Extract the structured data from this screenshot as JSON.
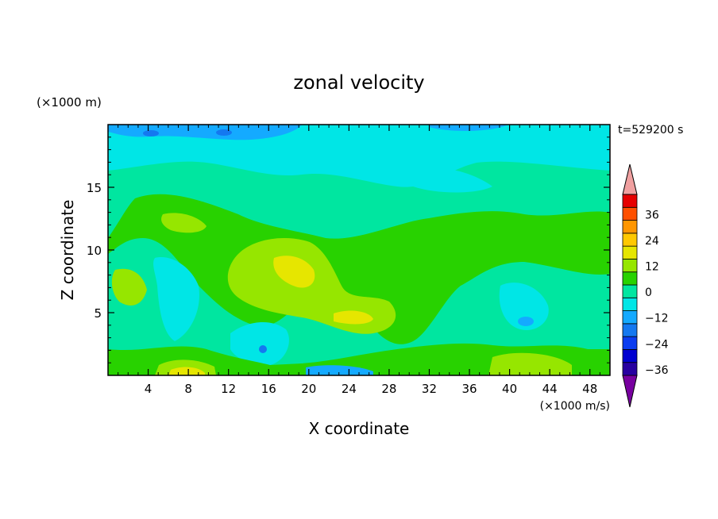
{
  "chart_data": {
    "type": "heatmap",
    "title": "zonal velocity",
    "xlabel": "X coordinate",
    "ylabel": "Z coordinate",
    "x_units": "(×1000 m/s)",
    "y_units": "(×1000 m)",
    "time_label": "t=529200 s",
    "x_ticks": [
      4,
      8,
      12,
      16,
      20,
      24,
      28,
      32,
      36,
      40,
      44,
      48
    ],
    "y_ticks": [
      5,
      10,
      15
    ],
    "xlim": [
      0,
      50
    ],
    "ylim": [
      0,
      20
    ],
    "colorbar": {
      "levels": [
        -42,
        -36,
        -30,
        -24,
        -18,
        -12,
        -6,
        0,
        6,
        12,
        18,
        24,
        30,
        36,
        42
      ],
      "labels": [
        36,
        24,
        12,
        0,
        -12,
        -24,
        -36
      ],
      "colors": [
        "#7800a0",
        "#2800a0",
        "#0000d0",
        "#0a3cf0",
        "#1478f0",
        "#14aaff",
        "#00e6e6",
        "#00e6a0",
        "#28d200",
        "#96e600",
        "#e6e600",
        "#ffc800",
        "#ff9600",
        "#ff5000",
        "#e60000",
        "#f0a0a0"
      ]
    },
    "regions": [
      {
        "x": 2,
        "y": 19.2,
        "value": -18
      },
      {
        "x": 11,
        "y": 19.3,
        "value": -18
      },
      {
        "x": 25,
        "y": 19.5,
        "value": -12
      },
      {
        "x": 6,
        "y": 17.5,
        "value": -6
      },
      {
        "x": 30,
        "y": 17,
        "value": -6
      },
      {
        "x": 42,
        "y": 16,
        "value": -6
      },
      {
        "x": 8,
        "y": 12,
        "value": 6
      },
      {
        "x": 19,
        "y": 8.5,
        "value": 12
      },
      {
        "x": 23.5,
        "y": 4.5,
        "value": 12
      },
      {
        "x": 42,
        "y": 4.5,
        "value": -12
      },
      {
        "x": 15.5,
        "y": 2,
        "value": -18
      },
      {
        "x": 8,
        "y": 0.5,
        "value": 18
      },
      {
        "x": 43,
        "y": 1,
        "value": 12
      }
    ]
  }
}
